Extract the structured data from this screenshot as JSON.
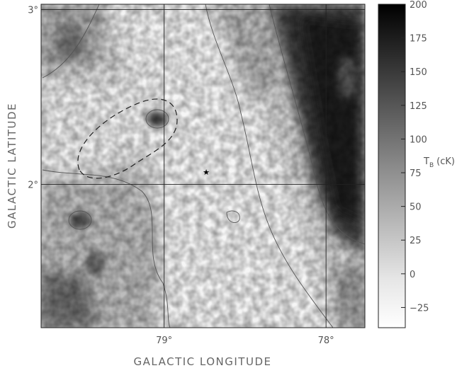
{
  "chart_data": {
    "type": "heatmap",
    "title": "",
    "xlabel": "GALACTIC LONGITUDE",
    "ylabel": "GALACTIC LATITUDE",
    "x_axis": {
      "direction": "decreasing",
      "xlim": [
        79.76,
        77.76
      ],
      "ticks": [
        79,
        78
      ],
      "tick_labels": [
        "79°",
        "78°"
      ]
    },
    "y_axis": {
      "ylim": [
        1.18,
        3.03
      ],
      "ticks": [
        3,
        2
      ],
      "tick_labels": [
        "3°",
        "2°"
      ]
    },
    "grid": true,
    "colorbar": {
      "label_main": "T",
      "label_sub": "B",
      "label_unit": "(cK)",
      "range": [
        -40,
        200
      ],
      "ticks": [
        200,
        175,
        150,
        125,
        100,
        75,
        50,
        25,
        0,
        -25
      ],
      "tick_labels": [
        "200",
        "175",
        "150",
        "125",
        "100",
        "75",
        "50",
        "25",
        "0",
        "−25"
      ],
      "colormap": "greyscale, white = low, black = high"
    },
    "marker": {
      "symbol": "★",
      "l": 78.74,
      "b": 2.07
    },
    "features": [
      {
        "name": "dashed-ellipse-region",
        "l": 79.2,
        "b": 2.3,
        "style": "dashed"
      },
      {
        "name": "bright-ridge-east",
        "l": 78.0,
        "b": 2.3
      },
      {
        "name": "compact-source-a",
        "l": 79.06,
        "b": 2.36
      },
      {
        "name": "compact-source-b",
        "l": 79.52,
        "b": 1.78
      }
    ]
  }
}
